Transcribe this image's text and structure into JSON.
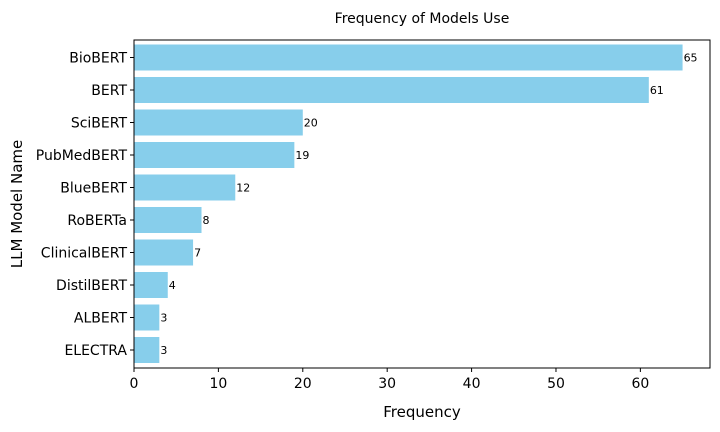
{
  "chart_data": {
    "type": "bar",
    "orientation": "horizontal",
    "title": "Frequency of Models Use",
    "xlabel": "Frequency",
    "ylabel": "LLM Model Name",
    "categories": [
      "BioBERT",
      "BERT",
      "SciBERT",
      "PubMedBERT",
      "BlueBERT",
      "RoBERTa",
      "ClinicalBERT",
      "DistilBERT",
      "ALBERT",
      "ELECTRA"
    ],
    "values": [
      65,
      61,
      20,
      19,
      12,
      8,
      7,
      4,
      3,
      3
    ],
    "xlim": [
      0,
      68.25
    ],
    "xticks": [
      0,
      10,
      20,
      30,
      40,
      50,
      60
    ],
    "bar_color": "#87CEEB",
    "grid": false,
    "data_labels": true
  }
}
